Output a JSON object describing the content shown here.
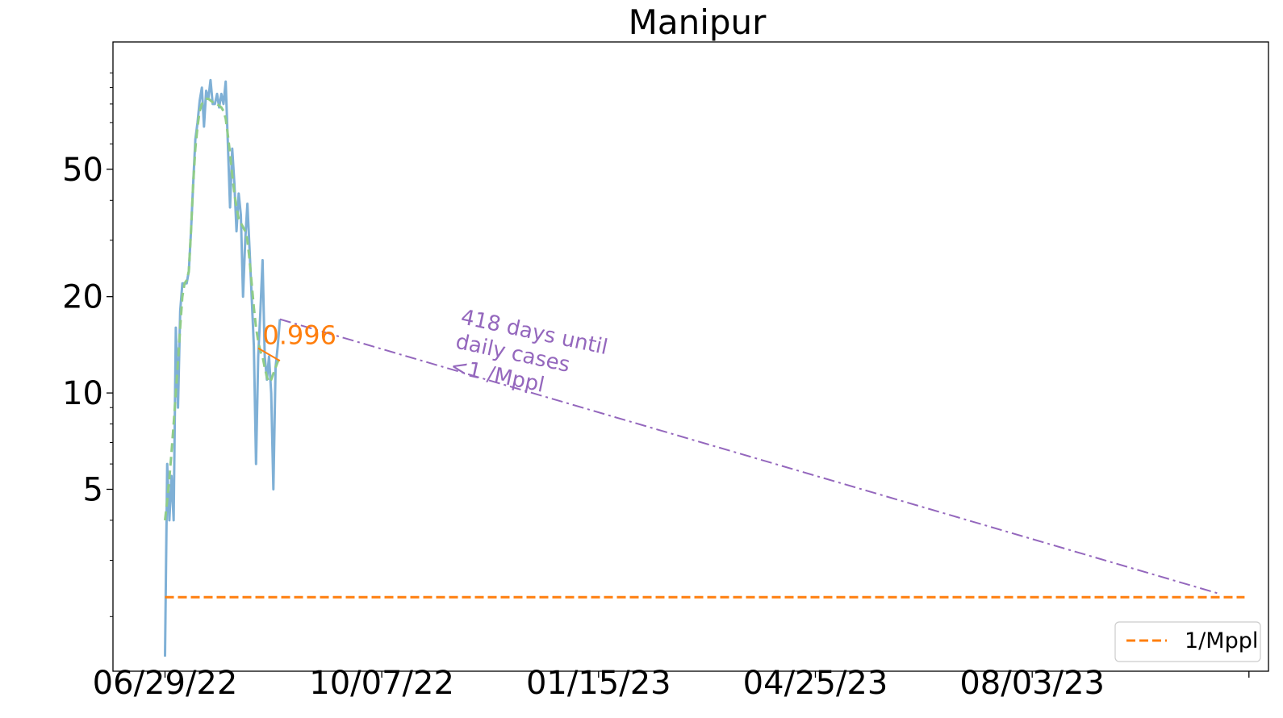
{
  "chart_data": {
    "type": "line",
    "title": "Manipur",
    "xlabel": "",
    "ylabel": "",
    "y_scale": "log",
    "x_ticks": [
      "06/29/22",
      "10/07/22",
      "01/15/23",
      "04/25/23",
      "08/03/23"
    ],
    "y_ticks": [
      {
        "value": 5,
        "label": "5"
      },
      {
        "value": 10,
        "label": "10"
      },
      {
        "value": 20,
        "label": "20"
      },
      {
        "value": 50,
        "label": "50"
      }
    ],
    "x_range": [
      "2022-06-05",
      "2023-11-20"
    ],
    "y_range": [
      1.35,
      125
    ],
    "grid": false,
    "legend": {
      "position": "bottom-right",
      "entries": [
        "1/Mppl"
      ]
    },
    "colors": {
      "raw": "#7fb0d6",
      "smoothed": "#8fcc88",
      "threshold": "#ff7f0e",
      "projection": "#9467bd",
      "ratio": "#ff7f0e"
    },
    "series": [
      {
        "name": "",
        "style": "solid",
        "points": [
          [
            "2022-06-29",
            1.5
          ],
          [
            "2022-06-30",
            6.0
          ],
          [
            "2022-07-01",
            4.0
          ],
          [
            "2022-07-02",
            5.5
          ],
          [
            "2022-07-03",
            4.0
          ],
          [
            "2022-07-04",
            16.0
          ],
          [
            "2022-07-05",
            9.0
          ],
          [
            "2022-07-06",
            18.0
          ],
          [
            "2022-07-07",
            22.0
          ],
          [
            "2022-07-08",
            22.0
          ],
          [
            "2022-07-09",
            22.0
          ],
          [
            "2022-07-10",
            24.0
          ],
          [
            "2022-07-11",
            32.0
          ],
          [
            "2022-07-12",
            45.0
          ],
          [
            "2022-07-13",
            62.0
          ],
          [
            "2022-07-14",
            70.0
          ],
          [
            "2022-07-15",
            82.0
          ],
          [
            "2022-07-16",
            90.0
          ],
          [
            "2022-07-17",
            68.0
          ],
          [
            "2022-07-18",
            88.0
          ],
          [
            "2022-07-19",
            83.0
          ],
          [
            "2022-07-20",
            95.0
          ],
          [
            "2022-07-21",
            80.0
          ],
          [
            "2022-07-22",
            80.0
          ],
          [
            "2022-07-23",
            86.0
          ],
          [
            "2022-07-24",
            78.0
          ],
          [
            "2022-07-25",
            86.0
          ],
          [
            "2022-07-26",
            80.0
          ],
          [
            "2022-07-27",
            94.0
          ],
          [
            "2022-07-28",
            60.0
          ],
          [
            "2022-07-29",
            38.0
          ],
          [
            "2022-07-30",
            58.0
          ],
          [
            "2022-07-31",
            45.0
          ],
          [
            "2022-08-01",
            32.0
          ],
          [
            "2022-08-02",
            42.0
          ],
          [
            "2022-08-03",
            36.0
          ],
          [
            "2022-08-04",
            20.0
          ],
          [
            "2022-08-05",
            30.0
          ],
          [
            "2022-08-06",
            39.0
          ],
          [
            "2022-08-07",
            28.0
          ],
          [
            "2022-08-08",
            20.0
          ],
          [
            "2022-08-09",
            14.0
          ],
          [
            "2022-08-10",
            6.0
          ],
          [
            "2022-08-11",
            13.0
          ],
          [
            "2022-08-12",
            18.0
          ],
          [
            "2022-08-13",
            26.0
          ],
          [
            "2022-08-14",
            13.0
          ],
          [
            "2022-08-15",
            11.0
          ],
          [
            "2022-08-16",
            13.0
          ],
          [
            "2022-08-17",
            10.0
          ],
          [
            "2022-08-18",
            5.0
          ],
          [
            "2022-08-19",
            12.0
          ],
          [
            "2022-08-20",
            14.0
          ],
          [
            "2022-08-21",
            17.0
          ]
        ]
      },
      {
        "name": "",
        "style": "dashed",
        "points": [
          [
            "2022-06-29",
            4.0
          ],
          [
            "2022-06-30",
            4.6
          ],
          [
            "2022-07-01",
            5.4
          ],
          [
            "2022-07-02",
            6.5
          ],
          [
            "2022-07-03",
            8.0
          ],
          [
            "2022-07-04",
            10.0
          ],
          [
            "2022-07-05",
            12.5
          ],
          [
            "2022-07-06",
            16.0
          ],
          [
            "2022-07-07",
            20.0
          ],
          [
            "2022-07-08",
            22.0
          ],
          [
            "2022-07-09",
            22.5
          ],
          [
            "2022-07-10",
            24.0
          ],
          [
            "2022-07-11",
            32.0
          ],
          [
            "2022-07-12",
            45.0
          ],
          [
            "2022-07-13",
            58.0
          ],
          [
            "2022-07-14",
            68.0
          ],
          [
            "2022-07-15",
            76.0
          ],
          [
            "2022-07-16",
            80.0
          ],
          [
            "2022-07-17",
            82.0
          ],
          [
            "2022-07-18",
            83.0
          ],
          [
            "2022-07-19",
            83.0
          ],
          [
            "2022-07-20",
            82.0
          ],
          [
            "2022-07-21",
            81.0
          ],
          [
            "2022-07-22",
            80.0
          ],
          [
            "2022-07-23",
            80.0
          ],
          [
            "2022-07-24",
            79.0
          ],
          [
            "2022-07-25",
            78.0
          ],
          [
            "2022-07-26",
            76.0
          ],
          [
            "2022-07-27",
            72.0
          ],
          [
            "2022-07-28",
            64.0
          ],
          [
            "2022-07-29",
            56.0
          ],
          [
            "2022-07-30",
            48.0
          ],
          [
            "2022-07-31",
            42.0
          ],
          [
            "2022-08-01",
            38.0
          ],
          [
            "2022-08-02",
            35.0
          ],
          [
            "2022-08-03",
            34.0
          ],
          [
            "2022-08-04",
            33.0
          ],
          [
            "2022-08-05",
            32.0
          ],
          [
            "2022-08-06",
            30.0
          ],
          [
            "2022-08-07",
            26.0
          ],
          [
            "2022-08-08",
            22.0
          ],
          [
            "2022-08-09",
            18.5
          ],
          [
            "2022-08-10",
            16.0
          ],
          [
            "2022-08-11",
            14.5
          ],
          [
            "2022-08-12",
            13.5
          ],
          [
            "2022-08-13",
            13.0
          ],
          [
            "2022-08-14",
            12.0
          ],
          [
            "2022-08-15",
            11.2
          ],
          [
            "2022-08-16",
            10.8
          ],
          [
            "2022-08-17",
            11.0
          ],
          [
            "2022-08-18",
            11.5
          ],
          [
            "2022-08-19",
            12.0
          ],
          [
            "2022-08-20",
            12.5
          ],
          [
            "2022-08-21",
            13.0
          ]
        ]
      },
      {
        "name": "1/Mppl",
        "style": "dashed",
        "points": [
          [
            "2022-06-29",
            2.3
          ],
          [
            "2023-11-09",
            2.3
          ]
        ]
      },
      {
        "name": "",
        "style": "dashdot",
        "points": [
          [
            "2022-08-21",
            17.0
          ],
          [
            "2023-10-29",
            2.35
          ]
        ]
      },
      {
        "name": "",
        "style": "solid",
        "points": [
          [
            "2022-08-11",
            13.8
          ],
          [
            "2022-08-21",
            12.6
          ]
        ]
      }
    ],
    "annotations": [
      {
        "text": "0.996",
        "x": "2022-08-13",
        "y": 14.2
      },
      {
        "lines": [
          "418 days until",
          "daily cases",
          "<1 /Mppl"
        ],
        "x": "2022-11-12",
        "y": 16.5,
        "rotation_deg": 12
      }
    ]
  }
}
